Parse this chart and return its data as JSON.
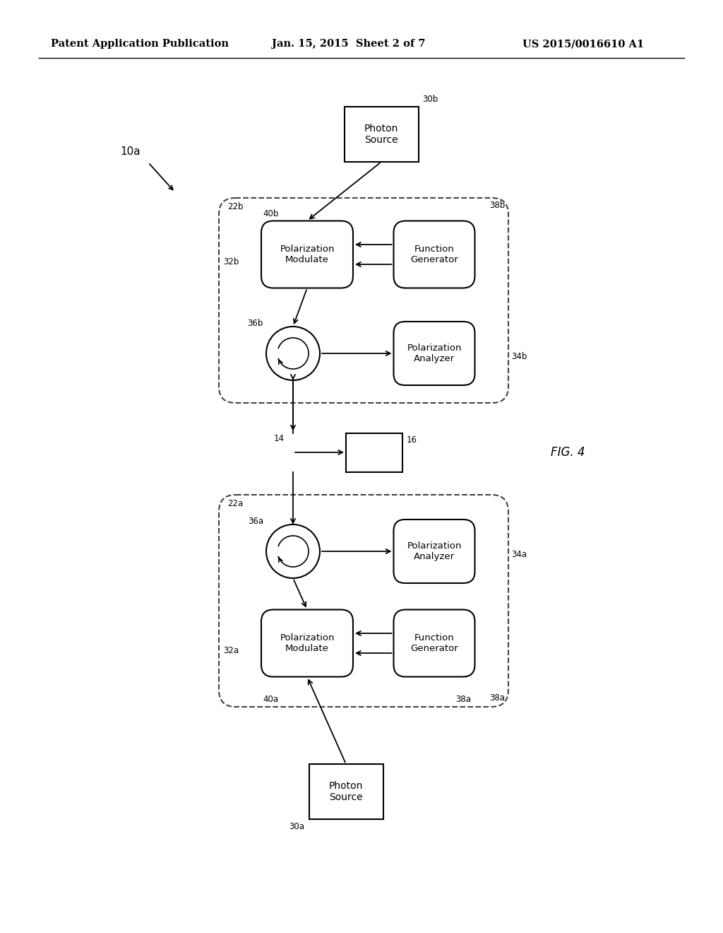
{
  "title_left": "Patent Application Publication",
  "title_center": "Jan. 15, 2015  Sheet 2 of 7",
  "title_right": "US 2015/0016610 A1",
  "fig_label": "FIG. 4",
  "background_color": "#ffffff",
  "text_color": "#000000"
}
